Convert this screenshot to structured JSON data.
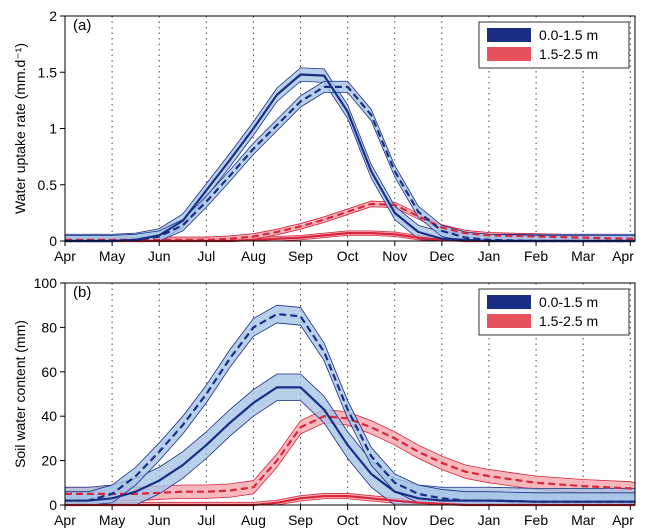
{
  "colors": {
    "series_1_line": "#1a2e86",
    "series_1_band": "#a8c4e6",
    "series_2_line": "#d7263d",
    "series_2_band": "#f4a6ad"
  },
  "chart_data": [
    {
      "type": "line",
      "panel_label": "(a)",
      "ylabel": "Water uptake rate (mm.d⁻¹)",
      "ylim": [
        0,
        2
      ],
      "yticks": [
        0,
        0.5,
        1,
        1.5,
        2
      ],
      "ytick_labels": [
        "0",
        "0.5",
        "1",
        "1.5",
        "2"
      ],
      "xlim": [
        0,
        12.1
      ],
      "categories": [
        "Apr",
        "May",
        "Jun",
        "Jul",
        "Aug",
        "Sep",
        "Oct",
        "Nov",
        "Dec",
        "Jan",
        "Feb",
        "Mar",
        "Apr"
      ],
      "grid": "vertical dotted",
      "legend_position": "top-right",
      "legend": [
        "0.0-1.5 m",
        "1.5-2.5 m"
      ],
      "x": [
        0,
        0.5,
        1,
        1.5,
        2,
        2.5,
        3,
        3.5,
        4,
        4.5,
        5,
        5.5,
        6,
        6.5,
        7,
        7.5,
        8,
        8.5,
        9,
        10,
        11,
        12,
        12.1
      ],
      "series": [
        {
          "legend_index": 0,
          "style": "solid",
          "color_key": "series_1",
          "values": [
            0,
            0,
            0,
            0.01,
            0.05,
            0.18,
            0.45,
            0.72,
            1.0,
            1.3,
            1.48,
            1.47,
            1.15,
            0.62,
            0.25,
            0.08,
            0.02,
            0.01,
            0,
            0,
            0,
            0,
            0
          ],
          "band": 0.06
        },
        {
          "legend_index": 0,
          "style": "dashed",
          "color_key": "series_1",
          "values": [
            0,
            0,
            0,
            0.01,
            0.04,
            0.14,
            0.35,
            0.58,
            0.82,
            1.03,
            1.24,
            1.37,
            1.37,
            1.12,
            0.62,
            0.26,
            0.09,
            0.03,
            0.01,
            0,
            0,
            0,
            0
          ],
          "band": 0.05
        },
        {
          "legend_index": 1,
          "style": "solid",
          "color_key": "series_2",
          "values": [
            0,
            0,
            0,
            0,
            0,
            0,
            0,
            0,
            0.01,
            0.02,
            0.03,
            0.05,
            0.07,
            0.07,
            0.06,
            0.03,
            0.01,
            0,
            0,
            0,
            0,
            0,
            0
          ],
          "band": 0.02
        },
        {
          "legend_index": 1,
          "style": "dashed",
          "color_key": "series_2",
          "values": [
            0.01,
            0.01,
            0.01,
            0.01,
            0.01,
            0.01,
            0.01,
            0.02,
            0.04,
            0.08,
            0.13,
            0.19,
            0.26,
            0.33,
            0.32,
            0.22,
            0.12,
            0.07,
            0.05,
            0.04,
            0.03,
            0.02,
            0.02
          ],
          "band": 0.025
        }
      ]
    },
    {
      "type": "line",
      "panel_label": "(b)",
      "ylabel": "Soil water content (mm)",
      "ylim": [
        0,
        100
      ],
      "yticks": [
        0,
        20,
        40,
        60,
        80,
        100
      ],
      "ytick_labels": [
        "0",
        "20",
        "40",
        "60",
        "80",
        "100"
      ],
      "xlim": [
        0,
        12.1
      ],
      "categories": [
        "Apr",
        "May",
        "Jun",
        "Jul",
        "Aug",
        "Sep",
        "Oct",
        "Nov",
        "Dec",
        "Jan",
        "Feb",
        "Mar",
        "Apr"
      ],
      "grid": "vertical dotted",
      "legend_position": "top-right",
      "legend": [
        "0.0-1.5 m",
        "1.5-2.5 m"
      ],
      "x": [
        0,
        0.5,
        1,
        1.5,
        2,
        2.5,
        3,
        3.5,
        4,
        4.5,
        5,
        5.5,
        6,
        6.5,
        7,
        7.5,
        8,
        8.5,
        9,
        10,
        11,
        12,
        12.1
      ],
      "series": [
        {
          "legend_index": 0,
          "style": "solid",
          "color_key": "series_1",
          "values": [
            2,
            2,
            3,
            6,
            11,
            18,
            27,
            37,
            46,
            53,
            53,
            43,
            27,
            14,
            6,
            3,
            2,
            2,
            2,
            1.5,
            1.5,
            1.5,
            1.5
          ],
          "band": 6
        },
        {
          "legend_index": 0,
          "style": "dashed",
          "color_key": "series_1",
          "values": [
            2,
            2,
            5,
            13,
            24,
            36,
            50,
            66,
            80,
            86,
            85,
            69,
            43,
            22,
            10,
            5,
            3,
            2,
            2,
            1.5,
            1.5,
            1.5,
            1.5
          ],
          "band": 4
        },
        {
          "legend_index": 1,
          "style": "solid",
          "color_key": "series_2",
          "values": [
            0,
            0,
            0,
            0,
            0,
            0,
            0,
            0,
            0,
            1,
            3,
            4,
            4,
            3,
            2,
            1,
            0.5,
            0,
            0,
            0,
            0,
            0,
            0
          ],
          "band": 1.2
        },
        {
          "legend_index": 1,
          "style": "dashed",
          "color_key": "series_2",
          "values": [
            5,
            5,
            5,
            5,
            5.5,
            6,
            6,
            6.5,
            8,
            20,
            35,
            40,
            39,
            35,
            30,
            24,
            19,
            15,
            13,
            10,
            8.5,
            7.5,
            7
          ],
          "band": 3
        }
      ]
    }
  ]
}
